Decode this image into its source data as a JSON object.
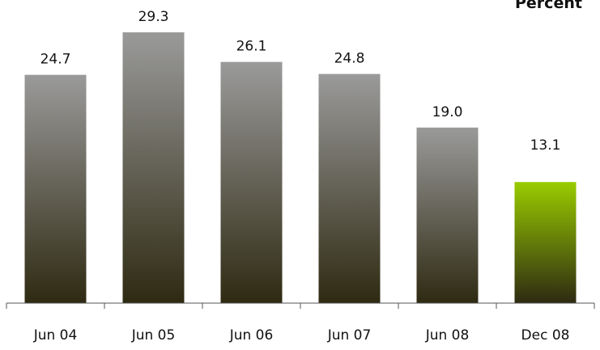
{
  "chart_data": {
    "type": "bar",
    "title": "Percent",
    "categories": [
      "Jun 04",
      "Jun 05",
      "Jun 06",
      "Jun 07",
      "Jun 08",
      "Dec 08"
    ],
    "values": [
      24.7,
      29.3,
      26.1,
      24.8,
      19.0,
      13.1
    ],
    "value_labels": [
      "24.7",
      "29.3",
      "26.1",
      "24.8",
      "19.0",
      "13.1"
    ],
    "ylim": [
      0,
      30
    ],
    "grid": false,
    "colors": {
      "default_top": "#9a9a9a",
      "default_bottom": "#2e2a12",
      "highlight_top": "#99cc00",
      "highlight_bottom": "#2e2a12",
      "axis": "#555555"
    },
    "highlight_index": 5
  }
}
